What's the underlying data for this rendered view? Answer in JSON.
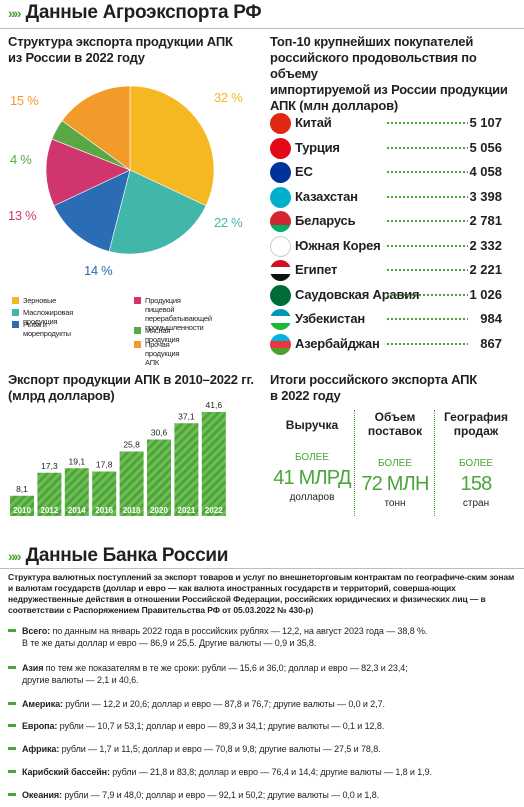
{
  "section1": {
    "chevrons": "»»",
    "title": "Данные Агроэкспорта РФ"
  },
  "structure": {
    "title_line1": "Структура экспорта продукции АПК",
    "title_line2": "из России в 2022 году"
  },
  "chart_data": [
    {
      "type": "pie",
      "title": "Структура экспорта продукции АПК из России в 2022 году",
      "slices": [
        {
          "name": "Зерновые",
          "value": 32,
          "label": "32 %",
          "color": "#f5b823"
        },
        {
          "name": "Масложировая продукция",
          "value": 22,
          "label": "22 %",
          "color": "#42b6a8"
        },
        {
          "name": "Рыба и морепродукты",
          "value": 14,
          "label": "14 %",
          "color": "#2a6db5"
        },
        {
          "name": "Продукция пищевой перерабатывающей промышленности",
          "value": 13,
          "label": "13 %",
          "color": "#d1356d"
        },
        {
          "name": "Мясная продукция",
          "value": 4,
          "label": "4 %",
          "color": "#5aa746"
        },
        {
          "name": "Прочая продукция АПК",
          "value": 15,
          "label": "15 %",
          "color": "#f39b2a"
        }
      ]
    },
    {
      "type": "bar",
      "title": "Экспорт продукции АПК в 2010–2022 гг. (млрд долларов)",
      "categories": [
        "2010",
        "2012",
        "2014",
        "2016",
        "2018",
        "2020",
        "2021",
        "2022"
      ],
      "values": [
        8.1,
        17.3,
        19.1,
        17.8,
        25.8,
        30.6,
        37.1,
        41.6
      ],
      "value_labels": [
        "8,1",
        "17,3",
        "19,1",
        "17,8",
        "25,8",
        "30,6",
        "37,1",
        "41,6"
      ],
      "ylim": [
        0,
        41.6
      ],
      "color": "#4ca43a"
    }
  ],
  "legend": {
    "grain": "Зерновые",
    "oil": "Масложировая продукция",
    "fish": "Рыба и морепродукты",
    "food_line1": "Продукция пищевой",
    "food_line2": "перерабатывающей",
    "food_line3": "промышленности",
    "meat": "Мясная продукция",
    "other": "Прочая продукция АПК"
  },
  "top10": {
    "title_line1": "Топ-10 крупнейших покупателей",
    "title_line2": "российского продовольствия по объему",
    "title_line3": "импортируемой из России продукции",
    "title_line4": "АПК (млн долларов)",
    "rows": [
      {
        "name": "Китай",
        "value": "5 107",
        "flag": "china"
      },
      {
        "name": "Турция",
        "value": "5 056",
        "flag": "turkey"
      },
      {
        "name": "ЕС",
        "value": "4 058",
        "flag": "eu"
      },
      {
        "name": "Казахстан",
        "value": "3 398",
        "flag": "kazakhstan"
      },
      {
        "name": "Беларусь",
        "value": "2 781",
        "flag": "belarus"
      },
      {
        "name": "Южная Корея",
        "value": "2 332",
        "flag": "south-korea"
      },
      {
        "name": "Египет",
        "value": "2 221",
        "flag": "egypt"
      },
      {
        "name": "Саудовская Аравия",
        "value": "1 026",
        "flag": "saudi-arabia"
      },
      {
        "name": "Узбекистан",
        "value": "984",
        "flag": "uzbekistan"
      },
      {
        "name": "Азербайджан",
        "value": "867",
        "flag": "azerbaijan"
      }
    ]
  },
  "export_chart": {
    "title_line1": "Экспорт продукции АПК в 2010–2022 гг.",
    "title_line2": "(млрд долларов)"
  },
  "results": {
    "title_line1": "Итоги российского экспорта АПК",
    "title_line2": "в 2022 году",
    "cols": [
      {
        "h1": "Выручка",
        "h2": "",
        "small": "БОЛЕЕ",
        "big": "41 МЛРД",
        "unit": "долларов"
      },
      {
        "h1": "Объем",
        "h2": "поставок",
        "small": "БОЛЕЕ",
        "big": "72 МЛН",
        "unit": "тонн"
      },
      {
        "h1": "География",
        "h2": "продаж",
        "small": "БОЛЕЕ",
        "big": "158",
        "unit": "стран"
      }
    ]
  },
  "section2": {
    "chevrons": "»»",
    "title": "Данные Банка России"
  },
  "bank": {
    "intro": "Структура валютных поступлений за экспорт товаров и услуг по внешнеторговым контрактам по географиче-ским зонам и валютам государств (доллар и евро — как валюта иностранных государств и территорий, соверша-ющих недружественные действия в отношении Российской Федерации, российских юридических и физических лиц — в соответствии с Распоряжением Правительства РФ от 05.03.2022 № 430-р)",
    "rows": [
      {
        "label": "Всего:",
        "line1": " по данным на январь 2022 года в российских рублях — 12,2, на август 2023 года — 38,8 %.",
        "line2": "В те же даты доллар и евро — 86,9 и 25,5. Другие валюты — 0,9 и 35,8."
      },
      {
        "label": "Азия",
        "line1": " по тем же показателям в те же сроки: рубли — 15,6 и 36,0; доллар и евро — 82,3 и 23,4;",
        "line2": "другие валюты — 2,1 и 40,6."
      },
      {
        "label": "Америка:",
        "line1": " рубли — 12,2 и 20,6; доллар и евро — 87,8 и 76,7; другие валюты — 0,0 и 2,7.",
        "line2": ""
      },
      {
        "label": "Европа:",
        "line1": " рубли — 10,7 и 53,1; доллар и евро — 89,3 и 34,1; другие валюты — 0,1 и 12,8.",
        "line2": ""
      },
      {
        "label": "Африка:",
        "line1": " рубли — 1,7 и 11,5; доллар и евро — 70,8 и 9,8; другие валюты — 27,5 и 78,8.",
        "line2": ""
      },
      {
        "label": "Карибский бассейн:",
        "line1": " рубли — 21,8 и 83,8; доллар и евро — 76,4 и 14,4; другие валюты — 1,8 и 1,9.",
        "line2": ""
      },
      {
        "label": "Океания:",
        "line1": " рубли — 7,9 и 48,0; доллар и евро — 92,1 и 50,2; другие валюты — 0,0 и 1,8.",
        "line2": ""
      }
    ]
  }
}
